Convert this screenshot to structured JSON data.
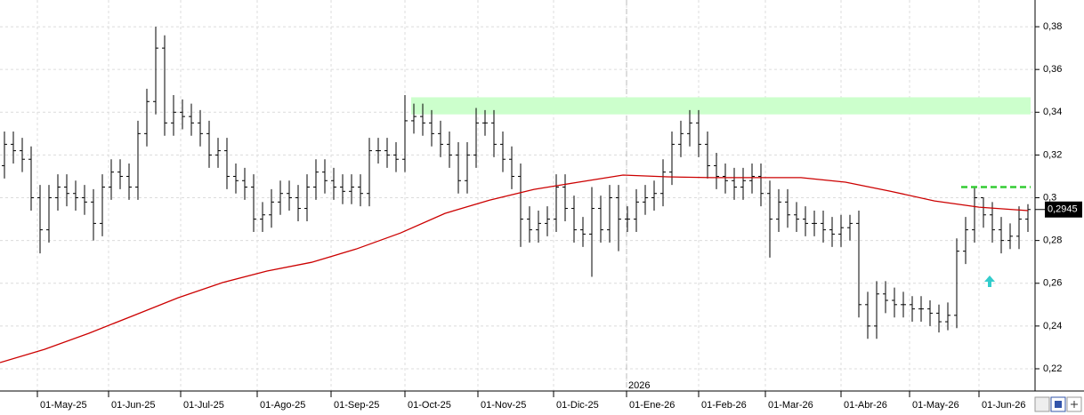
{
  "chart_data": {
    "type": "ohlc",
    "xlim": [
      -0.5,
      115.5
    ],
    "ylim": [
      0.2096,
      0.3925
    ],
    "yticks": [
      {
        "value": 0.22,
        "label": "0,22"
      },
      {
        "value": 0.24,
        "label": "0,24"
      },
      {
        "value": 0.26,
        "label": "0,26"
      },
      {
        "value": 0.28,
        "label": "0,28"
      },
      {
        "value": 0.3,
        "label": "0,3"
      },
      {
        "value": 0.32,
        "label": "0,32"
      },
      {
        "value": 0.34,
        "label": "0,34"
      },
      {
        "value": 0.36,
        "label": "0,36"
      },
      {
        "value": 0.38,
        "label": "0,38"
      }
    ],
    "xticks": [
      {
        "value": 3.7,
        "label": "01-May-25"
      },
      {
        "value": 11.7,
        "label": "01-Jun-25"
      },
      {
        "value": 19.8,
        "label": "01-Jul-25"
      },
      {
        "value": 28.4,
        "label": "01-Ago-25"
      },
      {
        "value": 36.7,
        "label": "01-Sep-25"
      },
      {
        "value": 45,
        "label": "01-Oct-25"
      },
      {
        "value": 53.2,
        "label": "01-Nov-25"
      },
      {
        "value": 61.7,
        "label": "01-Dic-25"
      },
      {
        "value": 69.9,
        "label": "01-Ene-26"
      },
      {
        "value": 78,
        "label": "01-Feb-26"
      },
      {
        "value": 85.5,
        "label": "01-Mar-26"
      },
      {
        "value": 94,
        "label": "01-Abr-26"
      },
      {
        "value": 101.7,
        "label": "01-May-26"
      },
      {
        "value": 109.5,
        "label": "01-Jun-26"
      }
    ],
    "year_marker": {
      "value": 69.9,
      "label": "2026"
    },
    "grid": true,
    "color": "#000000",
    "open": [
      0.315,
      0.325,
      0.322,
      0.318,
      0.3,
      0.285,
      0.3,
      0.305,
      0.302,
      0.3,
      0.298,
      0.288,
      0.305,
      0.312,
      0.31,
      0.305,
      0.33,
      0.345,
      0.37,
      0.335,
      0.34,
      0.338,
      0.335,
      0.33,
      0.32,
      0.322,
      0.31,
      0.308,
      0.305,
      0.29,
      0.292,
      0.298,
      0.302,
      0.3,
      0.295,
      0.305,
      0.312,
      0.308,
      0.305,
      0.303,
      0.305,
      0.302,
      0.322,
      0.322,
      0.32,
      0.318,
      0.336,
      0.338,
      0.335,
      0.33,
      0.325,
      0.32,
      0.308,
      0.32,
      0.335,
      0.335,
      0.325,
      0.318,
      0.31,
      0.29,
      0.285,
      0.288,
      0.29,
      0.305,
      0.295,
      0.285,
      0.283,
      0.295,
      0.285,
      0.3,
      0.29,
      0.29,
      0.298,
      0.3,
      0.302,
      0.312,
      0.325,
      0.33,
      0.335,
      0.325,
      0.315,
      0.31,
      0.308,
      0.305,
      0.308,
      0.31,
      0.302,
      0.29,
      0.298,
      0.292,
      0.29,
      0.288,
      0.288,
      0.285,
      0.283,
      0.286,
      0.288,
      0.25,
      0.24,
      0.255,
      0.252,
      0.25,
      0.25,
      0.248,
      0.248,
      0.246,
      0.242,
      0.245,
      0.275,
      0.285,
      0.3,
      0.292,
      0.285,
      0.28,
      0.282,
      0.29
    ],
    "high": [
      0.331,
      0.331,
      0.328,
      0.324,
      0.306,
      0.306,
      0.311,
      0.311,
      0.308,
      0.306,
      0.304,
      0.311,
      0.318,
      0.318,
      0.316,
      0.336,
      0.351,
      0.38,
      0.376,
      0.348,
      0.346,
      0.344,
      0.341,
      0.336,
      0.328,
      0.328,
      0.316,
      0.314,
      0.311,
      0.298,
      0.304,
      0.308,
      0.308,
      0.306,
      0.311,
      0.318,
      0.318,
      0.314,
      0.311,
      0.311,
      0.311,
      0.328,
      0.328,
      0.328,
      0.326,
      0.348,
      0.344,
      0.344,
      0.341,
      0.336,
      0.331,
      0.326,
      0.326,
      0.342,
      0.341,
      0.341,
      0.331,
      0.324,
      0.316,
      0.296,
      0.294,
      0.296,
      0.311,
      0.311,
      0.301,
      0.291,
      0.305,
      0.301,
      0.306,
      0.306,
      0.296,
      0.304,
      0.306,
      0.308,
      0.318,
      0.331,
      0.336,
      0.341,
      0.341,
      0.331,
      0.321,
      0.316,
      0.314,
      0.314,
      0.316,
      0.316,
      0.308,
      0.304,
      0.304,
      0.298,
      0.296,
      0.294,
      0.294,
      0.291,
      0.292,
      0.292,
      0.294,
      0.256,
      0.261,
      0.261,
      0.258,
      0.256,
      0.254,
      0.254,
      0.252,
      0.25,
      0.251,
      0.281,
      0.291,
      0.305,
      0.3,
      0.298,
      0.291,
      0.288,
      0.296,
      0.297
    ],
    "low": [
      0.309,
      0.316,
      0.312,
      0.294,
      0.274,
      0.279,
      0.294,
      0.296,
      0.294,
      0.292,
      0.28,
      0.282,
      0.299,
      0.304,
      0.299,
      0.299,
      0.324,
      0.339,
      0.329,
      0.329,
      0.332,
      0.329,
      0.324,
      0.314,
      0.314,
      0.304,
      0.302,
      0.299,
      0.284,
      0.284,
      0.286,
      0.292,
      0.294,
      0.289,
      0.289,
      0.299,
      0.302,
      0.299,
      0.297,
      0.297,
      0.296,
      0.296,
      0.316,
      0.314,
      0.312,
      0.312,
      0.33,
      0.329,
      0.324,
      0.319,
      0.314,
      0.302,
      0.302,
      0.314,
      0.329,
      0.319,
      0.312,
      0.304,
      0.277,
      0.279,
      0.279,
      0.282,
      0.284,
      0.289,
      0.279,
      0.277,
      0.263,
      0.279,
      0.279,
      0.275,
      0.284,
      0.284,
      0.292,
      0.294,
      0.296,
      0.306,
      0.319,
      0.324,
      0.319,
      0.309,
      0.304,
      0.302,
      0.299,
      0.299,
      0.302,
      0.296,
      0.272,
      0.284,
      0.286,
      0.284,
      0.282,
      0.282,
      0.279,
      0.277,
      0.277,
      0.28,
      0.244,
      0.234,
      0.234,
      0.246,
      0.244,
      0.244,
      0.242,
      0.242,
      0.24,
      0.237,
      0.238,
      0.239,
      0.269,
      0.279,
      0.286,
      0.279,
      0.274,
      0.276,
      0.276,
      0.284
    ],
    "close": [
      0.325,
      0.322,
      0.318,
      0.3,
      0.285,
      0.3,
      0.305,
      0.302,
      0.3,
      0.298,
      0.288,
      0.305,
      0.312,
      0.31,
      0.305,
      0.33,
      0.345,
      0.37,
      0.335,
      0.34,
      0.338,
      0.335,
      0.33,
      0.32,
      0.322,
      0.31,
      0.308,
      0.305,
      0.29,
      0.292,
      0.298,
      0.302,
      0.3,
      0.295,
      0.305,
      0.312,
      0.308,
      0.305,
      0.303,
      0.305,
      0.302,
      0.322,
      0.322,
      0.32,
      0.318,
      0.336,
      0.338,
      0.335,
      0.33,
      0.325,
      0.32,
      0.308,
      0.32,
      0.335,
      0.335,
      0.325,
      0.318,
      0.31,
      0.29,
      0.285,
      0.288,
      0.29,
      0.305,
      0.295,
      0.285,
      0.283,
      0.295,
      0.285,
      0.3,
      0.29,
      0.29,
      0.298,
      0.3,
      0.302,
      0.312,
      0.325,
      0.33,
      0.335,
      0.325,
      0.315,
      0.31,
      0.308,
      0.305,
      0.308,
      0.31,
      0.302,
      0.29,
      0.298,
      0.292,
      0.29,
      0.288,
      0.288,
      0.285,
      0.283,
      0.286,
      0.288,
      0.25,
      0.24,
      0.255,
      0.252,
      0.25,
      0.25,
      0.248,
      0.248,
      0.246,
      0.242,
      0.245,
      0.275,
      0.285,
      0.3,
      0.292,
      0.285,
      0.28,
      0.282,
      0.29,
      0.2945
    ],
    "ma": {
      "color": "#cc0000",
      "x": [
        -0.5,
        4.5,
        9.5,
        14.5,
        19.5,
        24.5,
        29.5,
        34.5,
        39.5,
        44.5,
        49.5,
        54.5,
        59.5,
        64.5,
        69.5,
        74.5,
        79.5,
        84.5,
        89.5,
        94.5,
        99.5,
        104.5,
        109.5,
        115
      ],
      "values": [
        0.2229,
        0.2291,
        0.2366,
        0.2449,
        0.2532,
        0.2603,
        0.2657,
        0.2698,
        0.276,
        0.2835,
        0.2927,
        0.2989,
        0.3039,
        0.3073,
        0.3106,
        0.3098,
        0.3094,
        0.3094,
        0.3094,
        0.3073,
        0.3031,
        0.2985,
        0.2956,
        0.294
      ]
    },
    "zone": {
      "color": "#ccffcc",
      "x": [
        45.7,
        115.3
      ],
      "y": [
        0.339,
        0.347
      ]
    },
    "target": {
      "color": "#33cc33",
      "x": [
        107.5,
        115.3
      ],
      "value": 0.305
    },
    "last_price": {
      "value": 0.2945,
      "label": "0,2945"
    }
  }
}
